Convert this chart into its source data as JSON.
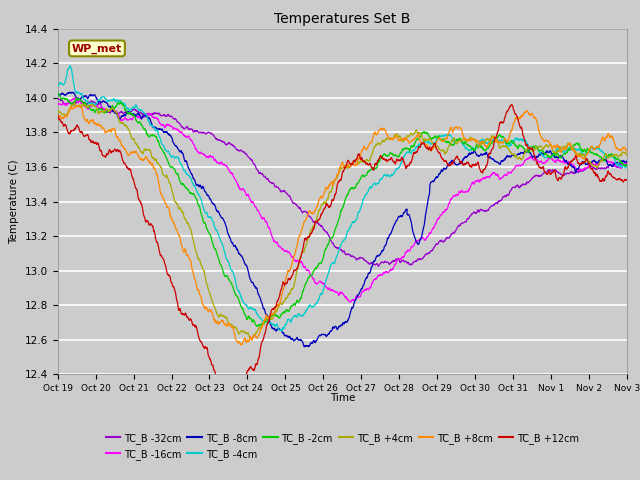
{
  "title": "Temperatures Set B",
  "xlabel": "Time",
  "ylabel": "Temperature (C)",
  "ylim": [
    12.4,
    14.4
  ],
  "bg_color": "#cccccc",
  "plot_bg_color": "#cccccc",
  "grid_color": "#ffffff",
  "x_tick_labels": [
    "Oct 19",
    "Oct 20",
    "Oct 21",
    "Oct 22",
    "Oct 23",
    "Oct 24",
    "Oct 25",
    "Oct 26",
    "Oct 27",
    "Oct 28",
    "Oct 29",
    "Oct 30",
    "Oct 31",
    "Nov 1",
    "Nov 2",
    "Nov 3"
  ],
  "series": [
    {
      "label": "TC_B -32cm",
      "color": "#9900cc"
    },
    {
      "label": "TC_B -16cm",
      "color": "#ff00ff"
    },
    {
      "label": "TC_B -8cm",
      "color": "#0000bb"
    },
    {
      "label": "TC_B -4cm",
      "color": "#00cccc"
    },
    {
      "label": "TC_B -2cm",
      "color": "#00cc00"
    },
    {
      "label": "TC_B +4cm",
      "color": "#aaaa00"
    },
    {
      "label": "TC_B +8cm",
      "color": "#ff8800"
    },
    {
      "label": "TC_B +12cm",
      "color": "#cc0000"
    }
  ],
  "wp_met_label": "WP_met",
  "wp_met_color": "#990000",
  "wp_met_bg": "#ffffcc",
  "wp_met_border": "#888800"
}
